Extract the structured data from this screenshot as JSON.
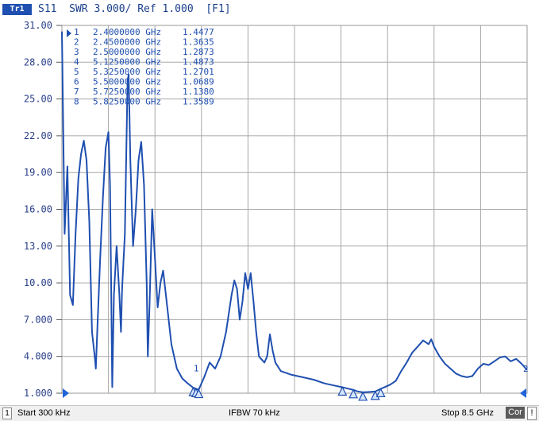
{
  "header": {
    "trace_badge": "Tr1",
    "trace_title": "S11  SWR 3.000/ Ref 1.000  [F1]"
  },
  "footer": {
    "channel": "1",
    "start": "Start 300 kHz",
    "ifbw": "IFBW 70 kHz",
    "stop": "Stop 8.5 GHz",
    "cor": "Cor",
    "warn": "!"
  },
  "markers": [
    {
      "id": "1",
      "freq": "2.4000000 GHz",
      "value": "1.4477"
    },
    {
      "id": "2",
      "freq": "2.4500000 GHz",
      "value": "1.3635"
    },
    {
      "id": "3",
      "freq": "2.5000000 GHz",
      "value": "1.2873"
    },
    {
      "id": "4",
      "freq": "5.1250000 GHz",
      "value": "1.4873"
    },
    {
      "id": "5",
      "freq": "5.3250000 GHz",
      "value": "1.2701"
    },
    {
      "id": "6",
      "freq": "5.5000000 GHz",
      "value": "1.0689"
    },
    {
      "id": "7",
      "freq": "5.7250000 GHz",
      "value": "1.1380"
    },
    {
      "id": "8",
      "freq": "5.8250000 GHz",
      "value": "1.3589"
    }
  ],
  "chart_data": {
    "type": "line",
    "title": "S11 SWR 3.000/ Ref 1.000 [F1]",
    "xlabel": "",
    "ylabel": "",
    "xlim": [
      0.0003,
      8.5
    ],
    "ylim": [
      1.0,
      31.0
    ],
    "yticks": [
      "31.00",
      "28.00",
      "25.00",
      "22.00",
      "19.00",
      "16.00",
      "13.00",
      "10.00",
      "7.000",
      "4.000",
      "1.000"
    ],
    "grid": true,
    "trace_color": "#1f4fb0",
    "series": [
      {
        "name": "S11",
        "points": [
          [
            0.0003,
            30.5
          ],
          [
            0.05,
            14.0
          ],
          [
            0.1,
            19.5
          ],
          [
            0.15,
            9.0
          ],
          [
            0.2,
            8.2
          ],
          [
            0.25,
            14.0
          ],
          [
            0.3,
            18.5
          ],
          [
            0.35,
            20.5
          ],
          [
            0.4,
            21.6
          ],
          [
            0.45,
            20.0
          ],
          [
            0.5,
            15.0
          ],
          [
            0.55,
            6.0
          ],
          [
            0.6,
            4.0
          ],
          [
            0.62,
            3.0
          ],
          [
            0.65,
            6.5
          ],
          [
            0.7,
            12.0
          ],
          [
            0.75,
            17.0
          ],
          [
            0.8,
            21.0
          ],
          [
            0.85,
            22.3
          ],
          [
            0.88,
            18.0
          ],
          [
            0.9,
            10.0
          ],
          [
            0.92,
            1.5
          ],
          [
            0.95,
            9.0
          ],
          [
            1.0,
            13.0
          ],
          [
            1.05,
            9.0
          ],
          [
            1.08,
            6.0
          ],
          [
            1.1,
            9.5
          ],
          [
            1.15,
            14.0
          ],
          [
            1.2,
            26.5
          ],
          [
            1.22,
            27.0
          ],
          [
            1.25,
            20.0
          ],
          [
            1.3,
            13.0
          ],
          [
            1.35,
            16.0
          ],
          [
            1.4,
            20.0
          ],
          [
            1.45,
            21.5
          ],
          [
            1.5,
            18.0
          ],
          [
            1.55,
            10.0
          ],
          [
            1.57,
            4.0
          ],
          [
            1.6,
            8.0
          ],
          [
            1.65,
            16.0
          ],
          [
            1.7,
            12.0
          ],
          [
            1.75,
            8.0
          ],
          [
            1.8,
            10.0
          ],
          [
            1.85,
            11.0
          ],
          [
            1.9,
            9.0
          ],
          [
            2.0,
            5.0
          ],
          [
            2.1,
            3.0
          ],
          [
            2.2,
            2.2
          ],
          [
            2.3,
            1.8
          ],
          [
            2.4,
            1.4477
          ],
          [
            2.45,
            1.3635
          ],
          [
            2.5,
            1.2873
          ],
          [
            2.6,
            2.3
          ],
          [
            2.7,
            3.5
          ],
          [
            2.8,
            3.0
          ],
          [
            2.9,
            4.0
          ],
          [
            3.0,
            6.0
          ],
          [
            3.1,
            9.0
          ],
          [
            3.15,
            10.2
          ],
          [
            3.2,
            9.5
          ],
          [
            3.25,
            7.0
          ],
          [
            3.3,
            8.5
          ],
          [
            3.35,
            10.8
          ],
          [
            3.4,
            9.5
          ],
          [
            3.45,
            10.8
          ],
          [
            3.5,
            8.5
          ],
          [
            3.55,
            6.0
          ],
          [
            3.6,
            4.0
          ],
          [
            3.7,
            3.5
          ],
          [
            3.75,
            4.0
          ],
          [
            3.8,
            5.8
          ],
          [
            3.85,
            4.5
          ],
          [
            3.9,
            3.5
          ],
          [
            4.0,
            2.8
          ],
          [
            4.2,
            2.5
          ],
          [
            4.4,
            2.3
          ],
          [
            4.6,
            2.1
          ],
          [
            4.8,
            1.8
          ],
          [
            5.0,
            1.6
          ],
          [
            5.125,
            1.4873
          ],
          [
            5.2,
            1.4
          ],
          [
            5.325,
            1.2701
          ],
          [
            5.4,
            1.15
          ],
          [
            5.5,
            1.0689
          ],
          [
            5.6,
            1.1
          ],
          [
            5.725,
            1.138
          ],
          [
            5.825,
            1.3589
          ],
          [
            5.9,
            1.5
          ],
          [
            6.0,
            1.7
          ],
          [
            6.1,
            2.0
          ],
          [
            6.2,
            2.8
          ],
          [
            6.3,
            3.5
          ],
          [
            6.4,
            4.3
          ],
          [
            6.5,
            4.8
          ],
          [
            6.6,
            5.3
          ],
          [
            6.7,
            5.0
          ],
          [
            6.75,
            5.4
          ],
          [
            6.8,
            4.8
          ],
          [
            6.9,
            4.0
          ],
          [
            7.0,
            3.4
          ],
          [
            7.1,
            3.0
          ],
          [
            7.2,
            2.6
          ],
          [
            7.3,
            2.4
          ],
          [
            7.4,
            2.3
          ],
          [
            7.5,
            2.4
          ],
          [
            7.6,
            3.0
          ],
          [
            7.7,
            3.4
          ],
          [
            7.8,
            3.3
          ],
          [
            7.9,
            3.6
          ],
          [
            8.0,
            3.9
          ],
          [
            8.1,
            4.0
          ],
          [
            8.2,
            3.6
          ],
          [
            8.25,
            3.7
          ],
          [
            8.3,
            3.8
          ],
          [
            8.4,
            3.4
          ],
          [
            8.5,
            2.9
          ]
        ]
      }
    ],
    "marker_points": [
      {
        "id": "1",
        "x": 2.4,
        "y": 1.4477
      },
      {
        "id": "2",
        "x": 2.45,
        "y": 1.3635
      },
      {
        "id": "3",
        "x": 2.5,
        "y": 1.2873
      },
      {
        "id": "4",
        "x": 5.125,
        "y": 1.4873
      },
      {
        "id": "5",
        "x": 5.325,
        "y": 1.2701
      },
      {
        "id": "6",
        "x": 5.5,
        "y": 1.0689
      },
      {
        "id": "7",
        "x": 5.725,
        "y": 1.138
      },
      {
        "id": "8",
        "x": 5.825,
        "y": 1.3589
      }
    ]
  }
}
